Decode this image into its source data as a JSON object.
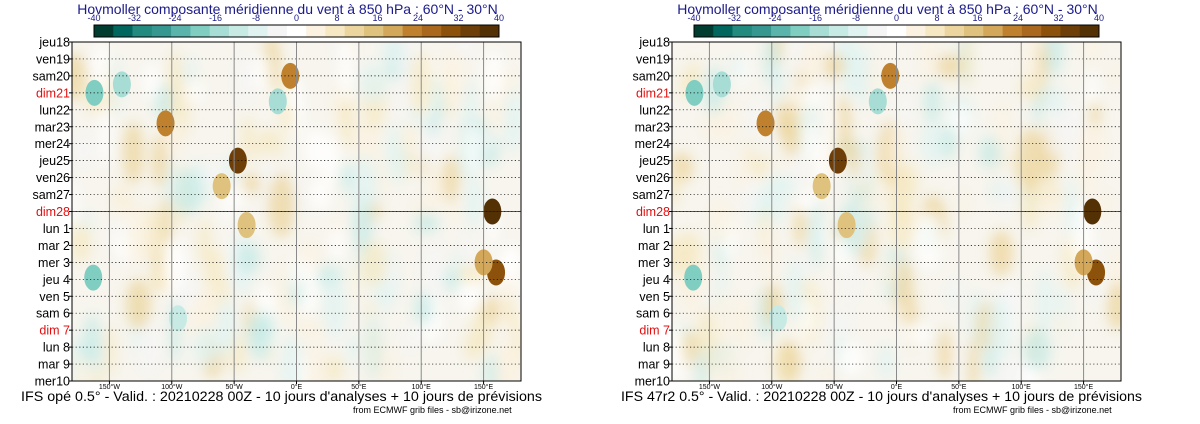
{
  "panels": [
    {
      "title": "Hovmoller composante méridienne du vent à 850 hPa : 60°N - 30°N",
      "footer": "IFS opé 0.5° - Valid. : 20210228 00Z - 10 jours d'analyses + 10 jours de prévisions",
      "credit": "from ECMWF grib files - sb@irizone.net"
    },
    {
      "title": "Hovmoller composante méridienne du vent à 850 hPa : 60°N - 30°N",
      "footer": "IFS 47r2 0.5° - Valid. : 20210228 00Z - 10 jours d'analyses + 10 jours de prévisions",
      "credit": "from ECMWF grib files - sb@irizone.net"
    }
  ],
  "chart_data": {
    "type": "heatmap",
    "variable": "composante méridienne du vent à 850 hPa",
    "latitude_band": "60°N - 30°N",
    "colorbar": {
      "ticks": [
        "-40",
        "-32",
        "-24",
        "-16",
        "-8",
        "0",
        "8",
        "16",
        "24",
        "32",
        "40"
      ],
      "colors": [
        "#003c30",
        "#01665e",
        "#238a80",
        "#35978f",
        "#5ab4ac",
        "#80cdc1",
        "#a8ddd6",
        "#c7eae5",
        "#e0f3f1",
        "#f5f5f5",
        "#ffffff",
        "#fbf2e2",
        "#f6e8c3",
        "#ecd59f",
        "#dfc27d",
        "#d4a85a",
        "#bf812d",
        "#a9681e",
        "#8c510a",
        "#6e3e08",
        "#543005"
      ]
    },
    "x_ticks": [
      "150°W",
      "100°W",
      "50°W",
      "0°E",
      "50°E",
      "100°E",
      "150°E"
    ],
    "x_values": [
      -150,
      -100,
      -50,
      0,
      50,
      100,
      150
    ],
    "xlim": [
      -180,
      180
    ],
    "y_labels": [
      {
        "label": "jeu18",
        "sunday": false
      },
      {
        "label": "ven19",
        "sunday": false
      },
      {
        "label": "sam20",
        "sunday": false
      },
      {
        "label": "dim21",
        "sunday": true
      },
      {
        "label": "lun22",
        "sunday": false
      },
      {
        "label": "mar23",
        "sunday": false
      },
      {
        "label": "mer24",
        "sunday": false
      },
      {
        "label": "jeu25",
        "sunday": false
      },
      {
        "label": "ven26",
        "sunday": false
      },
      {
        "label": "sam27",
        "sunday": false
      },
      {
        "label": "dim28",
        "sunday": true
      },
      {
        "label": "lun 1",
        "sunday": false
      },
      {
        "label": "mar 2",
        "sunday": false
      },
      {
        "label": "mer 3",
        "sunday": false
      },
      {
        "label": "jeu 4",
        "sunday": false
      },
      {
        "label": "ven 5",
        "sunday": false
      },
      {
        "label": "sam 6",
        "sunday": false
      },
      {
        "label": "dim 7",
        "sunday": true
      },
      {
        "label": "lun 8",
        "sunday": false
      },
      {
        "label": "mar 9",
        "sunday": false
      },
      {
        "label": "mer10",
        "sunday": false
      }
    ],
    "analysis_forecast_separator": "dim28",
    "features": [
      {
        "lon": 157,
        "day": 10.0,
        "value": 38
      },
      {
        "lon": 160,
        "day": 13.6,
        "value": 30
      },
      {
        "lon": 150,
        "day": 13.0,
        "value": 20
      },
      {
        "lon": -47,
        "day": 7.0,
        "value": 34
      },
      {
        "lon": -105,
        "day": 4.8,
        "value": 24
      },
      {
        "lon": -140,
        "day": 2.5,
        "value": -18
      },
      {
        "lon": -163,
        "day": 13.9,
        "value": -20
      },
      {
        "lon": -162,
        "day": 3.0,
        "value": -20
      },
      {
        "lon": -5,
        "day": 2.0,
        "value": 22
      },
      {
        "lon": -60,
        "day": 8.5,
        "value": 16
      },
      {
        "lon": -15,
        "day": 3.5,
        "value": -16
      },
      {
        "lon": -40,
        "day": 10.8,
        "value": 16
      },
      {
        "lon": -95,
        "day": 16.3,
        "value": -14
      }
    ]
  }
}
